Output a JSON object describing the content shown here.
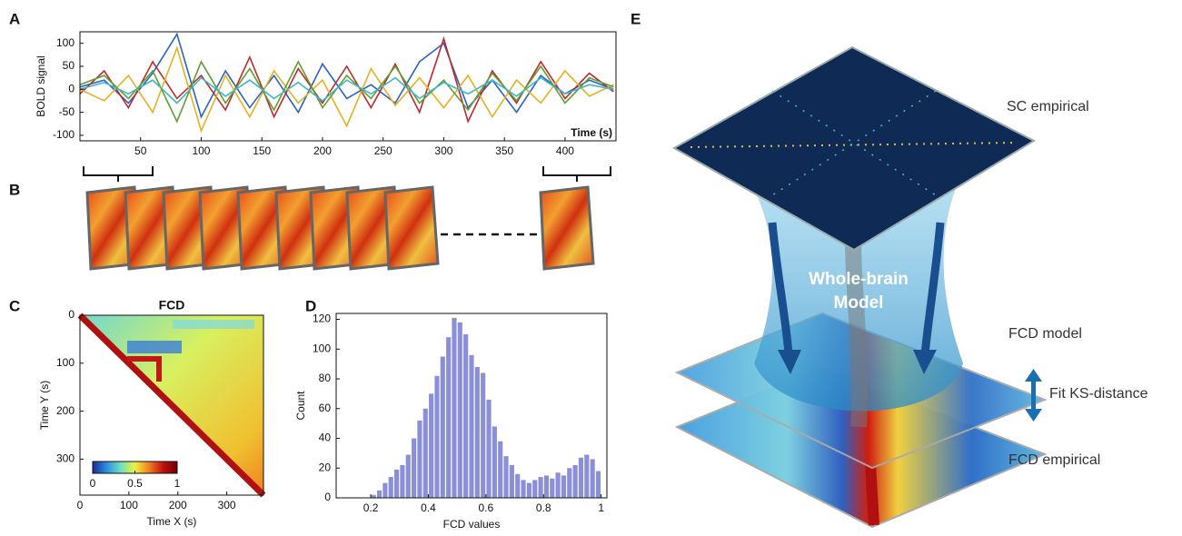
{
  "panel_labels": [
    "A",
    "B",
    "C",
    "D",
    "E"
  ],
  "chart_data": [
    {
      "type": "line",
      "xlabel": "Time (s)",
      "ylabel": "BOLD signal",
      "x": [
        0,
        20,
        40,
        60,
        80,
        100,
        120,
        140,
        160,
        180,
        200,
        220,
        240,
        260,
        280,
        300,
        320,
        340,
        360,
        380,
        400,
        420,
        440
      ],
      "series": [
        {
          "color": "#2a62c4",
          "values": [
            5,
            20,
            -30,
            35,
            120,
            -60,
            40,
            -40,
            30,
            -50,
            55,
            -20,
            10,
            -30,
            60,
            100,
            -40,
            20,
            -50,
            30,
            -10,
            20,
            0
          ]
        },
        {
          "color": "#c0282c",
          "values": [
            -10,
            40,
            -40,
            60,
            -20,
            30,
            -45,
            70,
            -60,
            45,
            -30,
            50,
            -40,
            55,
            -50,
            110,
            -70,
            40,
            -30,
            60,
            -20,
            35,
            -5
          ]
        },
        {
          "color": "#e8b020",
          "values": [
            0,
            -25,
            30,
            -50,
            90,
            -90,
            30,
            -60,
            40,
            -30,
            20,
            -80,
            45,
            -35,
            25,
            -40,
            30,
            -60,
            20,
            -30,
            40,
            -15,
            10
          ]
        },
        {
          "color": "#5f9f30",
          "values": [
            10,
            30,
            -20,
            40,
            -70,
            60,
            -30,
            45,
            -45,
            60,
            -40,
            30,
            -20,
            50,
            -30,
            20,
            -45,
            35,
            -25,
            50,
            -30,
            25,
            5
          ]
        },
        {
          "color": "#3fb6c8",
          "values": [
            0,
            15,
            -10,
            20,
            -30,
            25,
            -15,
            20,
            -20,
            15,
            -25,
            20,
            -10,
            25,
            -20,
            15,
            -10,
            20,
            -15,
            25,
            -10,
            10,
            0
          ]
        }
      ],
      "xlim": [
        0,
        442
      ],
      "ylim": [
        -112,
        125
      ],
      "xticks": [
        50,
        100,
        150,
        200,
        250,
        300,
        350,
        400
      ],
      "yticks": [
        -100,
        -50,
        0,
        50,
        100
      ]
    },
    {
      "type": "heatmap",
      "title": "FCD",
      "xlabel": "Time X (s)",
      "ylabel": "Time Y (s)",
      "xlim": [
        0,
        375
      ],
      "ylim": [
        0,
        375
      ],
      "y_reversed": true,
      "xticks": [
        0,
        100,
        200,
        300
      ],
      "yticks": [
        0,
        100,
        200,
        300
      ],
      "colorbar": {
        "lim": [
          0,
          1
        ],
        "ticks": [
          0,
          0.5,
          1
        ],
        "colors": [
          "#1a2a9a",
          "#2f8fe0",
          "#6fe0c0",
          "#f0f040",
          "#f08020",
          "#c01010",
          "#700000"
        ]
      }
    },
    {
      "type": "histogram",
      "xlabel": "FCD values",
      "ylabel": "Count",
      "color": "#8b8fd8",
      "bins": [
        0.2,
        0.22,
        0.24,
        0.26,
        0.28,
        0.3,
        0.32,
        0.34,
        0.36,
        0.38,
        0.4,
        0.42,
        0.44,
        0.46,
        0.48,
        0.5,
        0.52,
        0.54,
        0.56,
        0.58,
        0.6,
        0.62,
        0.64,
        0.66,
        0.68,
        0.7,
        0.72,
        0.74,
        0.76,
        0.78,
        0.8,
        0.82,
        0.84,
        0.86,
        0.88,
        0.9,
        0.92,
        0.94,
        0.96,
        0.98,
        1
      ],
      "values": [
        2,
        5,
        10,
        14,
        19,
        22,
        29,
        40,
        52,
        60,
        70,
        82,
        95,
        108,
        121,
        118,
        110,
        96,
        88,
        84,
        66,
        48,
        38,
        28,
        22,
        16,
        12,
        10,
        12,
        14,
        15,
        13,
        17,
        15,
        20,
        22,
        27,
        29,
        26,
        18
      ],
      "xlim": [
        0.08,
        1.02
      ],
      "ylim": [
        0,
        124
      ],
      "xticks": [
        0.2,
        0.4,
        0.6,
        0.8,
        1
      ],
      "yticks": [
        0,
        20,
        40,
        60,
        80,
        100,
        120
      ]
    }
  ],
  "diagram": {
    "sc_label": "SC empirical",
    "model_label": [
      "Whole-brain",
      "Model"
    ],
    "fcd_model_label": "FCD model",
    "fit_label": "Fit KS-distance",
    "fcd_empirical_label": "FCD empirical"
  }
}
